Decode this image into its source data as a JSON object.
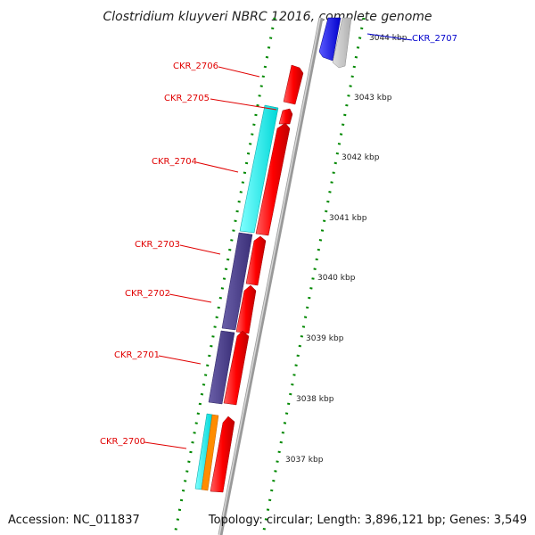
{
  "title": "Clostridium kluyveri NBRC 12016, complete genome",
  "footer": {
    "accession": "Accession: NC_011837",
    "topology": "Topology: circular; Length: 3,896,121 bp; Genes: 3,549"
  },
  "ticks": [
    "3044 kbp",
    "3043 kbp",
    "3042 kbp",
    "3041 kbp",
    "3040 kbp",
    "3039 kbp",
    "3038 kbp",
    "3037 kbp"
  ],
  "genes": [
    {
      "label": "CKR_2707",
      "color": "#0000cc"
    },
    {
      "label": "CKR_2706",
      "color": "#e00000"
    },
    {
      "label": "CKR_2705",
      "color": "#e00000"
    },
    {
      "label": "CKR_2704",
      "color": "#e00000"
    },
    {
      "label": "CKR_2703",
      "color": "#e00000"
    },
    {
      "label": "CKR_2702",
      "color": "#e00000"
    },
    {
      "label": "CKR_2701",
      "color": "#e00000"
    },
    {
      "label": "CKR_2700",
      "color": "#e00000"
    }
  ],
  "colors": {
    "cds_forward": "#ff0000",
    "cds_reverse": "#0000ff",
    "gc_content": "#00ffff",
    "cog_category_a": "#4b3f8c",
    "cog_category_b": "#ff8c00",
    "backbone": "#888888",
    "tick_marks": "#006600"
  }
}
